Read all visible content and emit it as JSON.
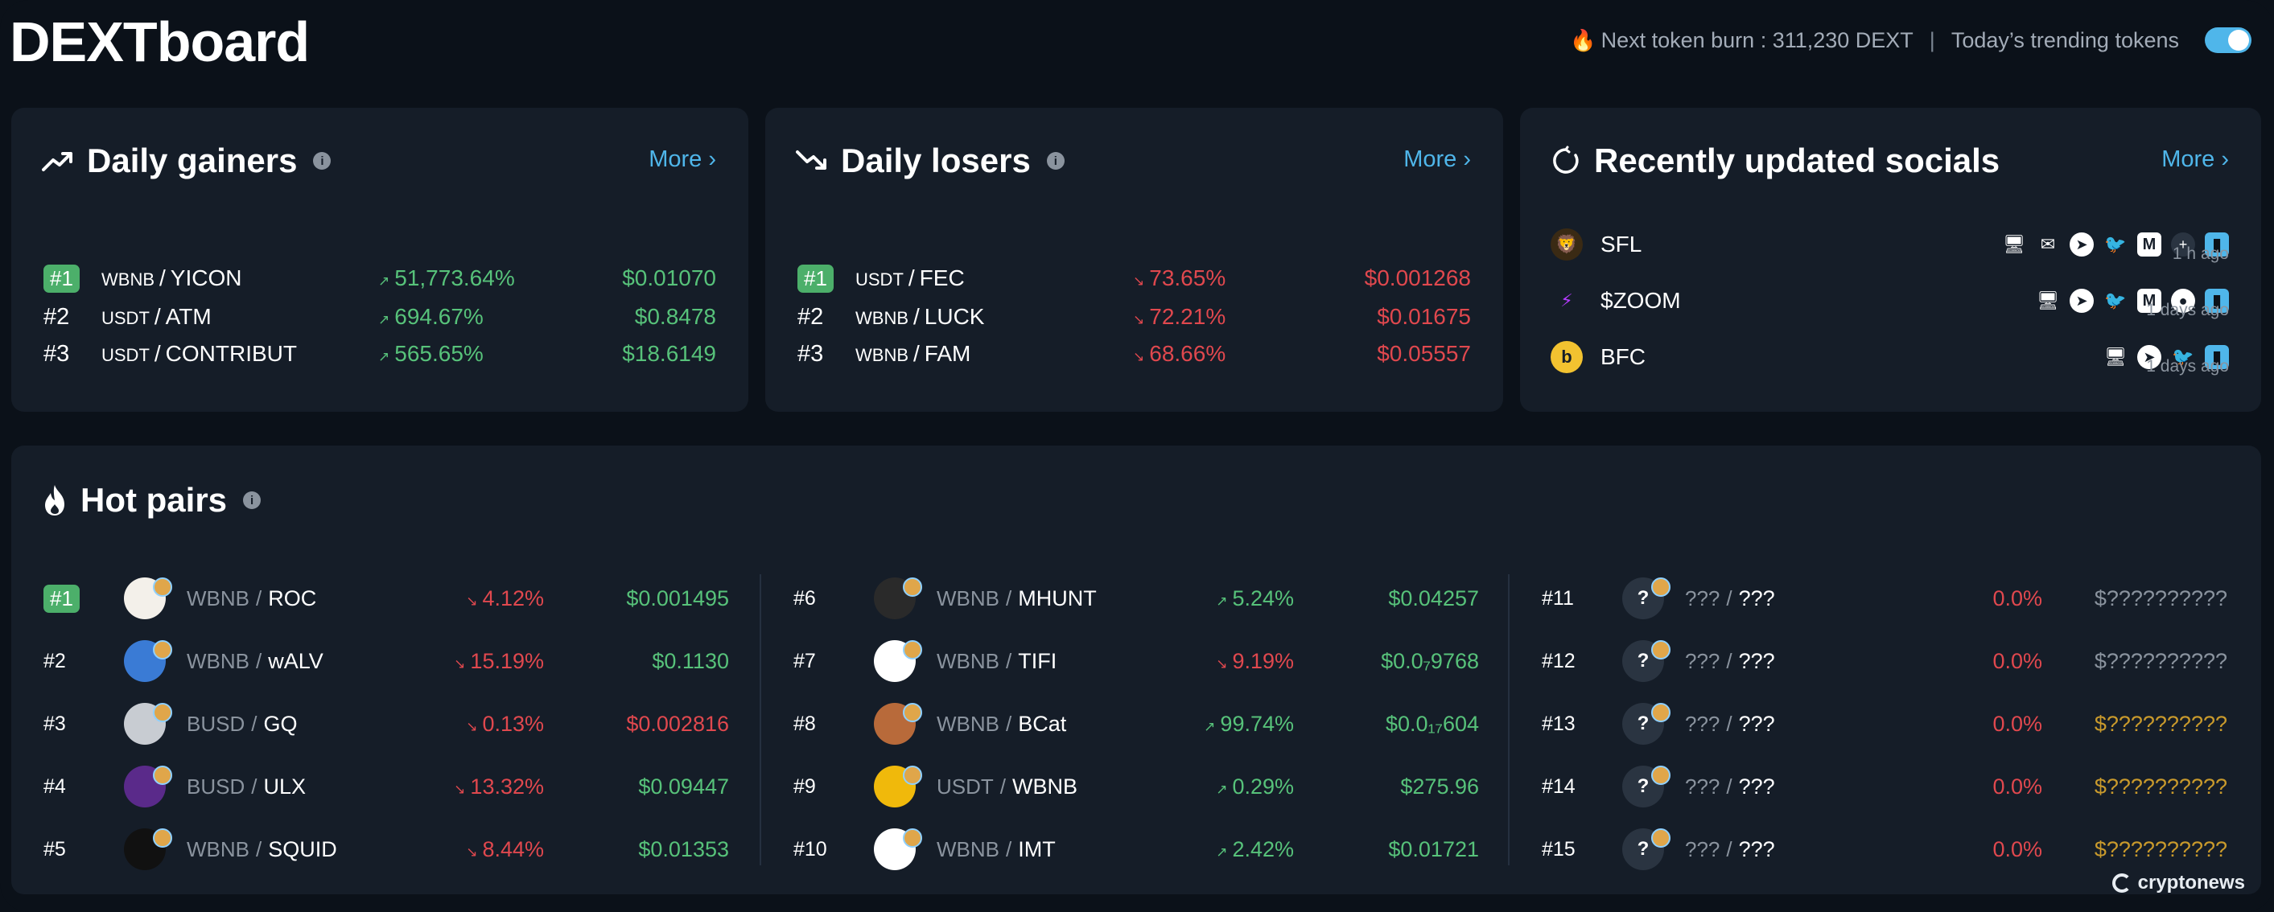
{
  "header": {
    "logo": "DEXTboard",
    "burn_text": "Next token burn : 311,230 DEXT",
    "separator": "|",
    "trending_label": "Today’s trending tokens",
    "toggle_on": true
  },
  "gainers": {
    "title": "Daily gainers",
    "more": "More ›",
    "rows": [
      {
        "rank": "#1",
        "quote": "WBNB",
        "base": "YICON",
        "pct": "51,773.64%",
        "price": "$0.01070"
      },
      {
        "rank": "#2",
        "quote": "USDT",
        "base": "ATM",
        "pct": "694.67%",
        "price": "$0.8478"
      },
      {
        "rank": "#3",
        "quote": "USDT",
        "base": "CONTRIBUT",
        "pct": "565.65%",
        "price": "$18.6149"
      }
    ]
  },
  "losers": {
    "title": "Daily losers",
    "more": "More ›",
    "rows": [
      {
        "rank": "#1",
        "quote": "USDT",
        "base": "FEC",
        "pct": "73.65%",
        "price": "$0.001268"
      },
      {
        "rank": "#2",
        "quote": "WBNB",
        "base": "LUCK",
        "pct": "72.21%",
        "price": "$0.01675"
      },
      {
        "rank": "#3",
        "quote": "WBNB",
        "base": "FAM",
        "pct": "68.66%",
        "price": "$0.05557"
      }
    ]
  },
  "socials": {
    "title": "Recently updated socials",
    "more": "More ›",
    "rows": [
      {
        "name": "SFL",
        "time": "1 h ago"
      },
      {
        "name": "$ZOOM",
        "time": "1 days ago"
      },
      {
        "name": "BFC",
        "time": "1 days ago"
      }
    ]
  },
  "hot": {
    "title": "Hot pairs",
    "col1": [
      {
        "rank": "#1",
        "quote": "WBNB",
        "base": "ROC",
        "pct": "4.12%",
        "price": "$0.001495"
      },
      {
        "rank": "#2",
        "quote": "WBNB",
        "base": "wALV",
        "pct": "15.19%",
        "price": "$0.1130"
      },
      {
        "rank": "#3",
        "quote": "BUSD",
        "base": "GQ",
        "pct": "0.13%",
        "price": "$0.002816"
      },
      {
        "rank": "#4",
        "quote": "BUSD",
        "base": "ULX",
        "pct": "13.32%",
        "price": "$0.09447"
      },
      {
        "rank": "#5",
        "quote": "WBNB",
        "base": "SQUID",
        "pct": "8.44%",
        "price": "$0.01353"
      }
    ],
    "col2": [
      {
        "rank": "#6",
        "quote": "WBNB",
        "base": "MHUNT",
        "pct": "5.24%",
        "price": "$0.04257"
      },
      {
        "rank": "#7",
        "quote": "WBNB",
        "base": "TIFI",
        "pct": "9.19%",
        "price": "$0.0₇9768"
      },
      {
        "rank": "#8",
        "quote": "WBNB",
        "base": "BCat",
        "pct": "99.74%",
        "price": "$0.0₁₇604"
      },
      {
        "rank": "#9",
        "quote": "USDT",
        "base": "WBNB",
        "pct": "0.29%",
        "price": "$275.96"
      },
      {
        "rank": "#10",
        "quote": "WBNB",
        "base": "IMT",
        "pct": "2.42%",
        "price": "$0.01721"
      }
    ],
    "col3": [
      {
        "rank": "#11",
        "avatar": "?",
        "quote": "???",
        "base": "???",
        "pct": "0.0%",
        "price": "$??????????"
      },
      {
        "rank": "#12",
        "avatar": "?",
        "quote": "???",
        "base": "???",
        "pct": "0.0%",
        "price": "$??????????"
      },
      {
        "rank": "#13",
        "avatar": "?",
        "quote": "???",
        "base": "???",
        "pct": "0.0%",
        "price": "$??????????"
      },
      {
        "rank": "#14",
        "avatar": "?",
        "quote": "???",
        "base": "???",
        "pct": "0.0%",
        "price": "$??????????"
      },
      {
        "rank": "#15",
        "avatar": "?",
        "quote": "???",
        "base": "???",
        "pct": "0.0%",
        "price": "$??????????"
      }
    ]
  },
  "watermark": "cryptonews",
  "colors": {
    "background": "#0b1119",
    "panel": "#151d28",
    "accent": "#4fb6ea",
    "positive": "#57c27a",
    "negative": "#e0484e",
    "unknown_price": "#c99a2c"
  }
}
